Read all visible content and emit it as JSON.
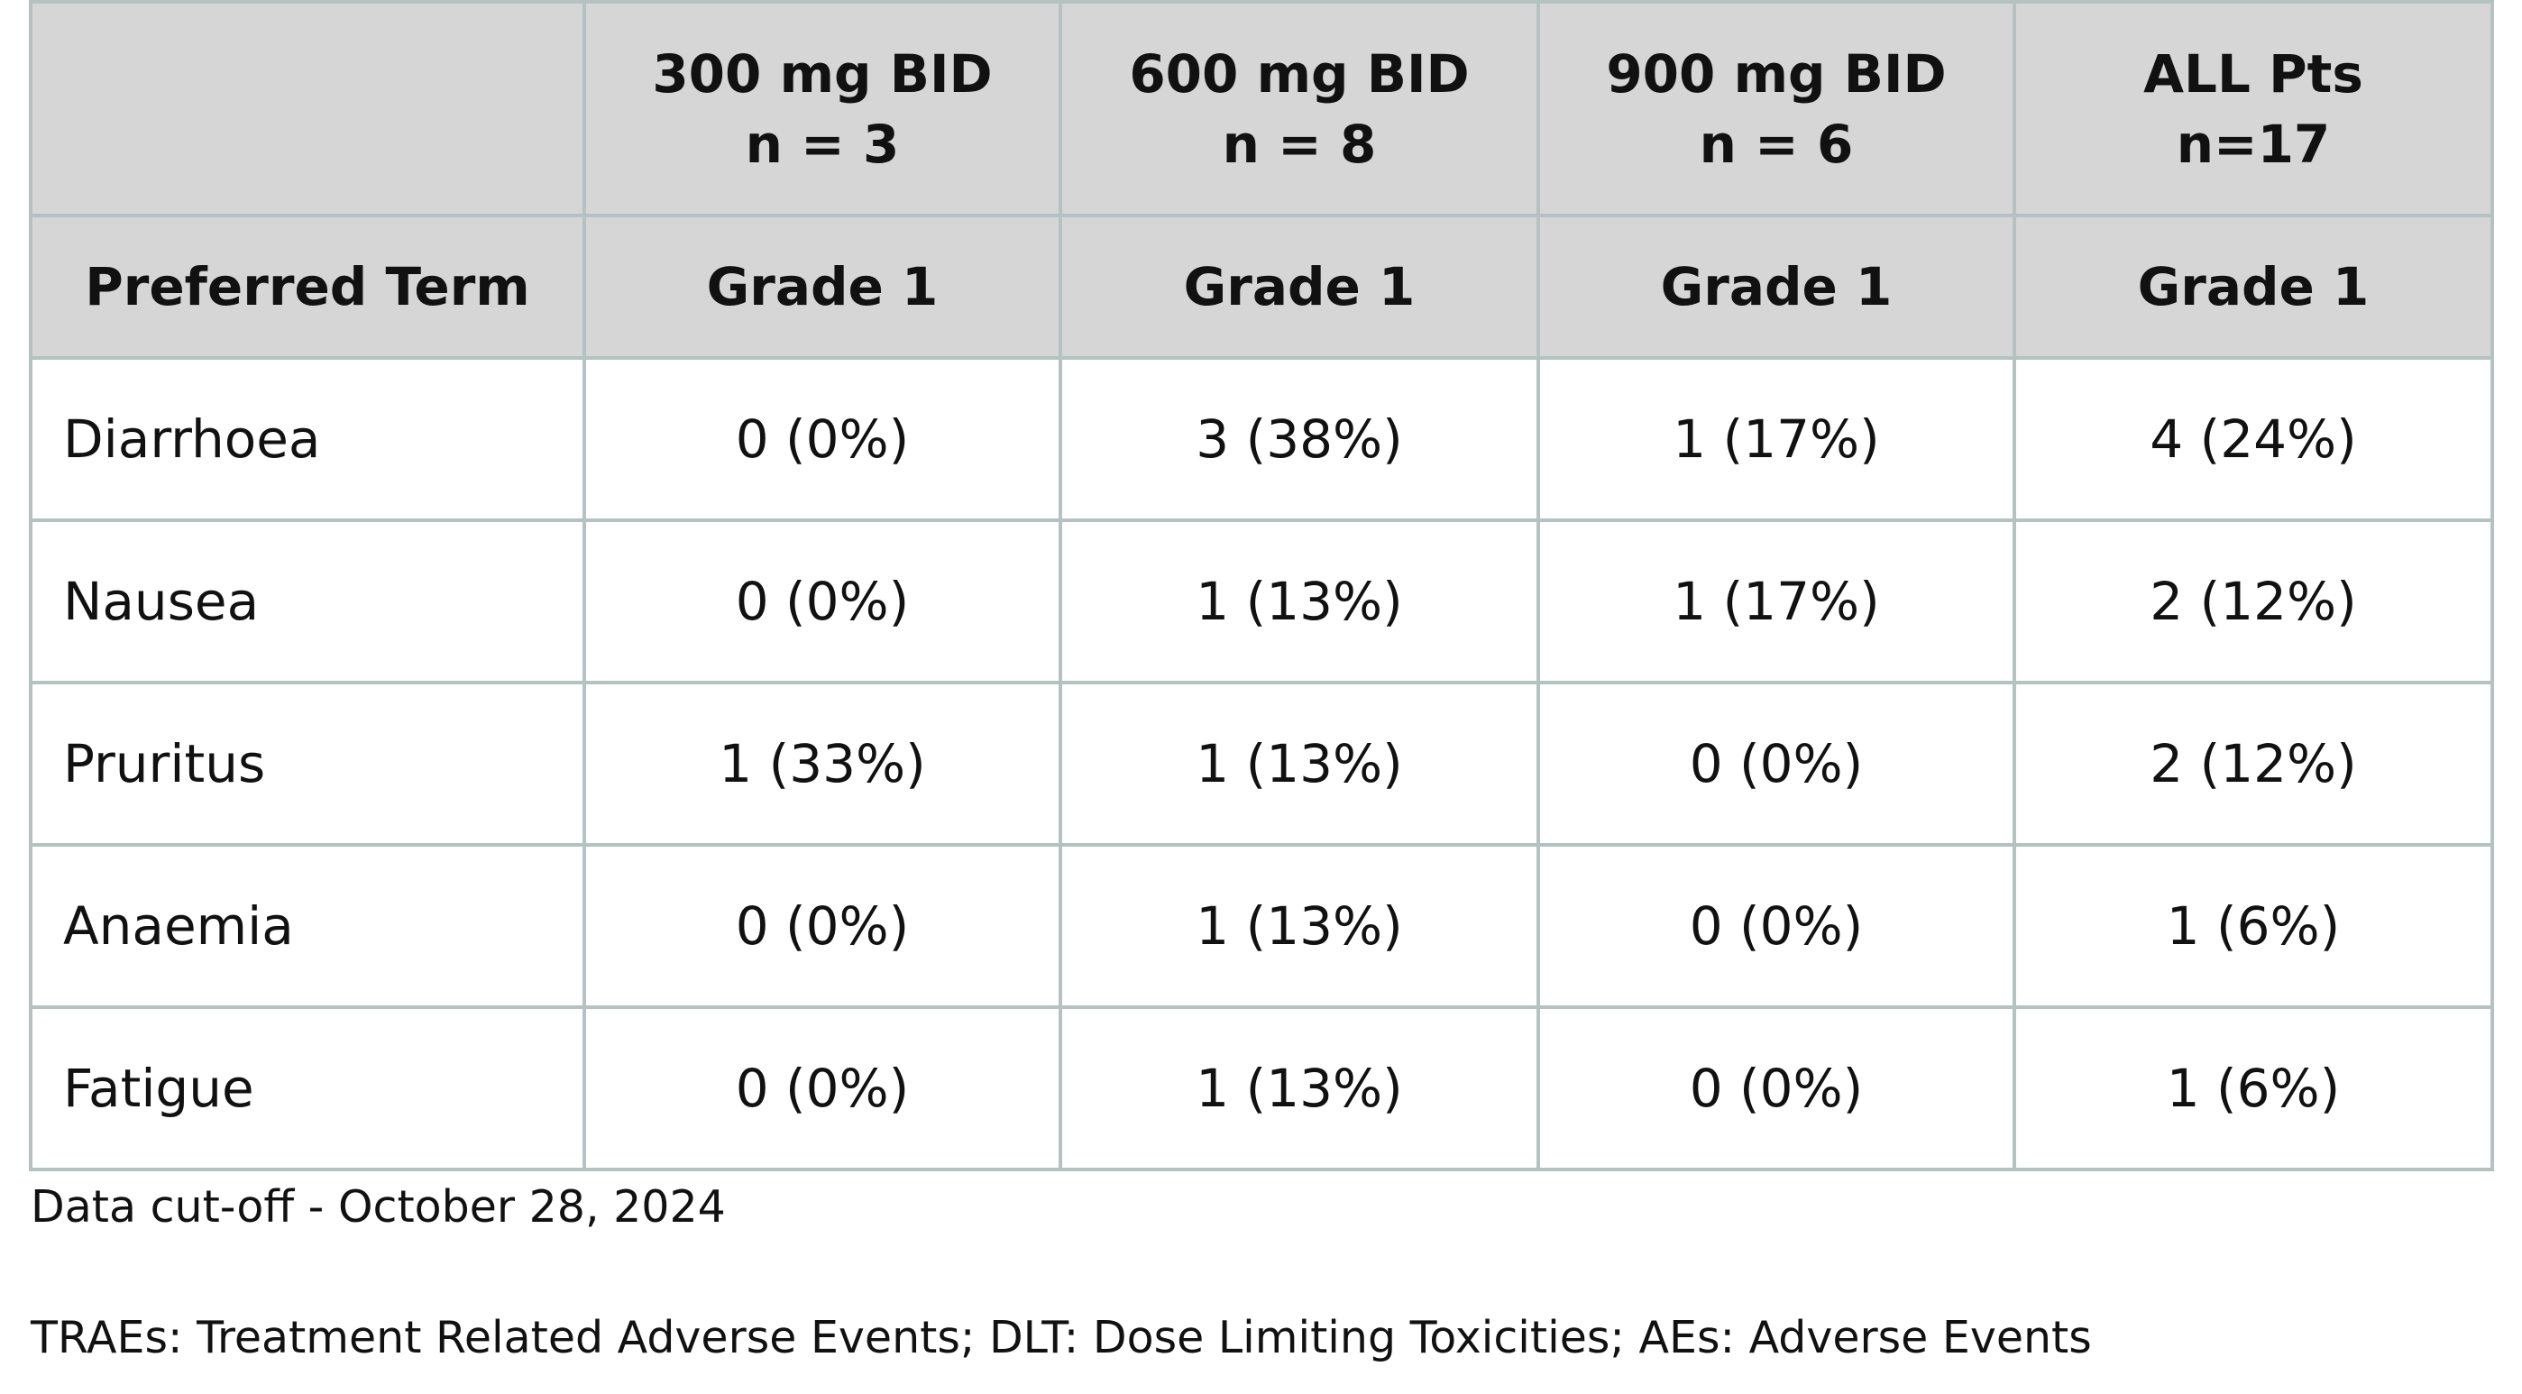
{
  "table": {
    "groups": [
      {
        "dose": "300 mg BID",
        "n": "n = 3"
      },
      {
        "dose": "600 mg BID",
        "n": "n = 8"
      },
      {
        "dose": "900 mg BID",
        "n": "n = 6"
      },
      {
        "dose": "ALL Pts",
        "n": "n=17"
      }
    ],
    "term_header": "Preferred Term",
    "grades": [
      "Grade 1",
      "Grade 1",
      "Grade 1",
      "Grade 1"
    ],
    "rows": [
      [
        "Diarrhoea",
        "0 (0%)",
        "3 (38%)",
        "1 (17%)",
        "4 (24%)"
      ],
      [
        "Nausea",
        "0 (0%)",
        "1 (13%)",
        "1 (17%)",
        "2 (12%)"
      ],
      [
        "Pruritus",
        "1 (33%)",
        "1 (13%)",
        "0 (0%)",
        "2 (12%)"
      ],
      [
        "Anaemia",
        "0 (0%)",
        "1 (13%)",
        "0 (0%)",
        "1 (6%)"
      ],
      [
        "Fatigue",
        "0 (0%)",
        "1 (13%)",
        "0 (0%)",
        "1 (6%)"
      ]
    ]
  },
  "footnotes": [
    "Data cut-off - October 28, 2024",
    "TRAEs: Treatment Related Adverse Events; DLT: Dose Limiting Toxicities; AEs: Adverse Events"
  ]
}
